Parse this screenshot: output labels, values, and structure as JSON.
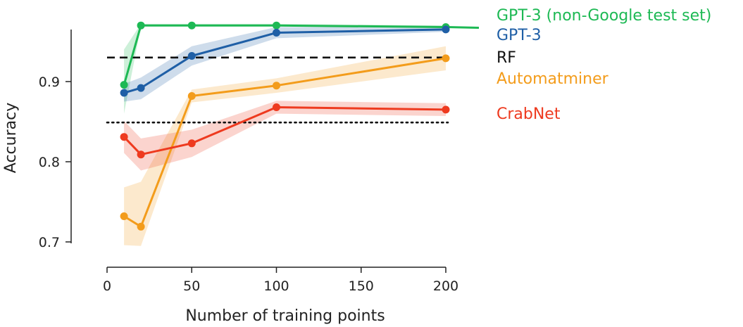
{
  "chart_data": {
    "type": "line",
    "xlabel": "Number of training points",
    "ylabel": "Accuracy",
    "xlim": [
      0,
      200
    ],
    "ylim": [
      0.69,
      0.97
    ],
    "x_ticks": [
      0,
      50,
      100,
      150,
      200
    ],
    "y_ticks": [
      0.7,
      0.8,
      0.9
    ],
    "legend_position": "right",
    "series": [
      {
        "name": "GPT-3 (non-Google test set)",
        "color": "#1db954",
        "x": [
          10,
          20,
          50,
          100,
          200
        ],
        "values": [
          0.896,
          0.97,
          0.97,
          0.97,
          0.968
        ],
        "band_low": [
          0.86,
          0.969,
          0.969,
          0.969,
          0.967
        ],
        "band_high": [
          0.94,
          0.972,
          0.972,
          0.972,
          0.97
        ]
      },
      {
        "name": "GPT-3",
        "color": "#1f5fa6",
        "x": [
          10,
          20,
          50,
          100,
          200
        ],
        "values": [
          0.886,
          0.892,
          0.932,
          0.961,
          0.965
        ],
        "band_low": [
          0.875,
          0.878,
          0.92,
          0.954,
          0.962
        ],
        "band_high": [
          0.897,
          0.905,
          0.944,
          0.968,
          0.968
        ]
      },
      {
        "name": "Automatminer",
        "color": "#f39c1b",
        "x": [
          10,
          20,
          50,
          100,
          200
        ],
        "values": [
          0.732,
          0.719,
          0.882,
          0.895,
          0.929
        ],
        "band_low": [
          0.696,
          0.695,
          0.874,
          0.886,
          0.914
        ],
        "band_high": [
          0.768,
          0.775,
          0.89,
          0.904,
          0.944
        ]
      },
      {
        "name": "CrabNet",
        "color": "#ee3a1f",
        "x": [
          10,
          20,
          50,
          100,
          200
        ],
        "values": [
          0.831,
          0.809,
          0.823,
          0.868,
          0.865
        ],
        "band_low": [
          0.811,
          0.789,
          0.806,
          0.86,
          0.857
        ],
        "band_high": [
          0.851,
          0.829,
          0.84,
          0.876,
          0.873
        ]
      }
    ],
    "reference_lines": [
      {
        "name": "RF",
        "value": 0.93,
        "style": "dashed",
        "color": "#111111"
      },
      {
        "name": "",
        "value": 0.849,
        "style": "dotted",
        "color": "#111111"
      }
    ],
    "legend": [
      {
        "label": "GPT-3 (non-Google test set)",
        "color": "#1db954"
      },
      {
        "label": "GPT-3",
        "color": "#1f5fa6"
      },
      {
        "label": "RF",
        "color": "#111111"
      },
      {
        "label": "Automatminer",
        "color": "#f39c1b"
      },
      {
        "label": "CrabNet",
        "color": "#ee3a1f"
      }
    ]
  }
}
